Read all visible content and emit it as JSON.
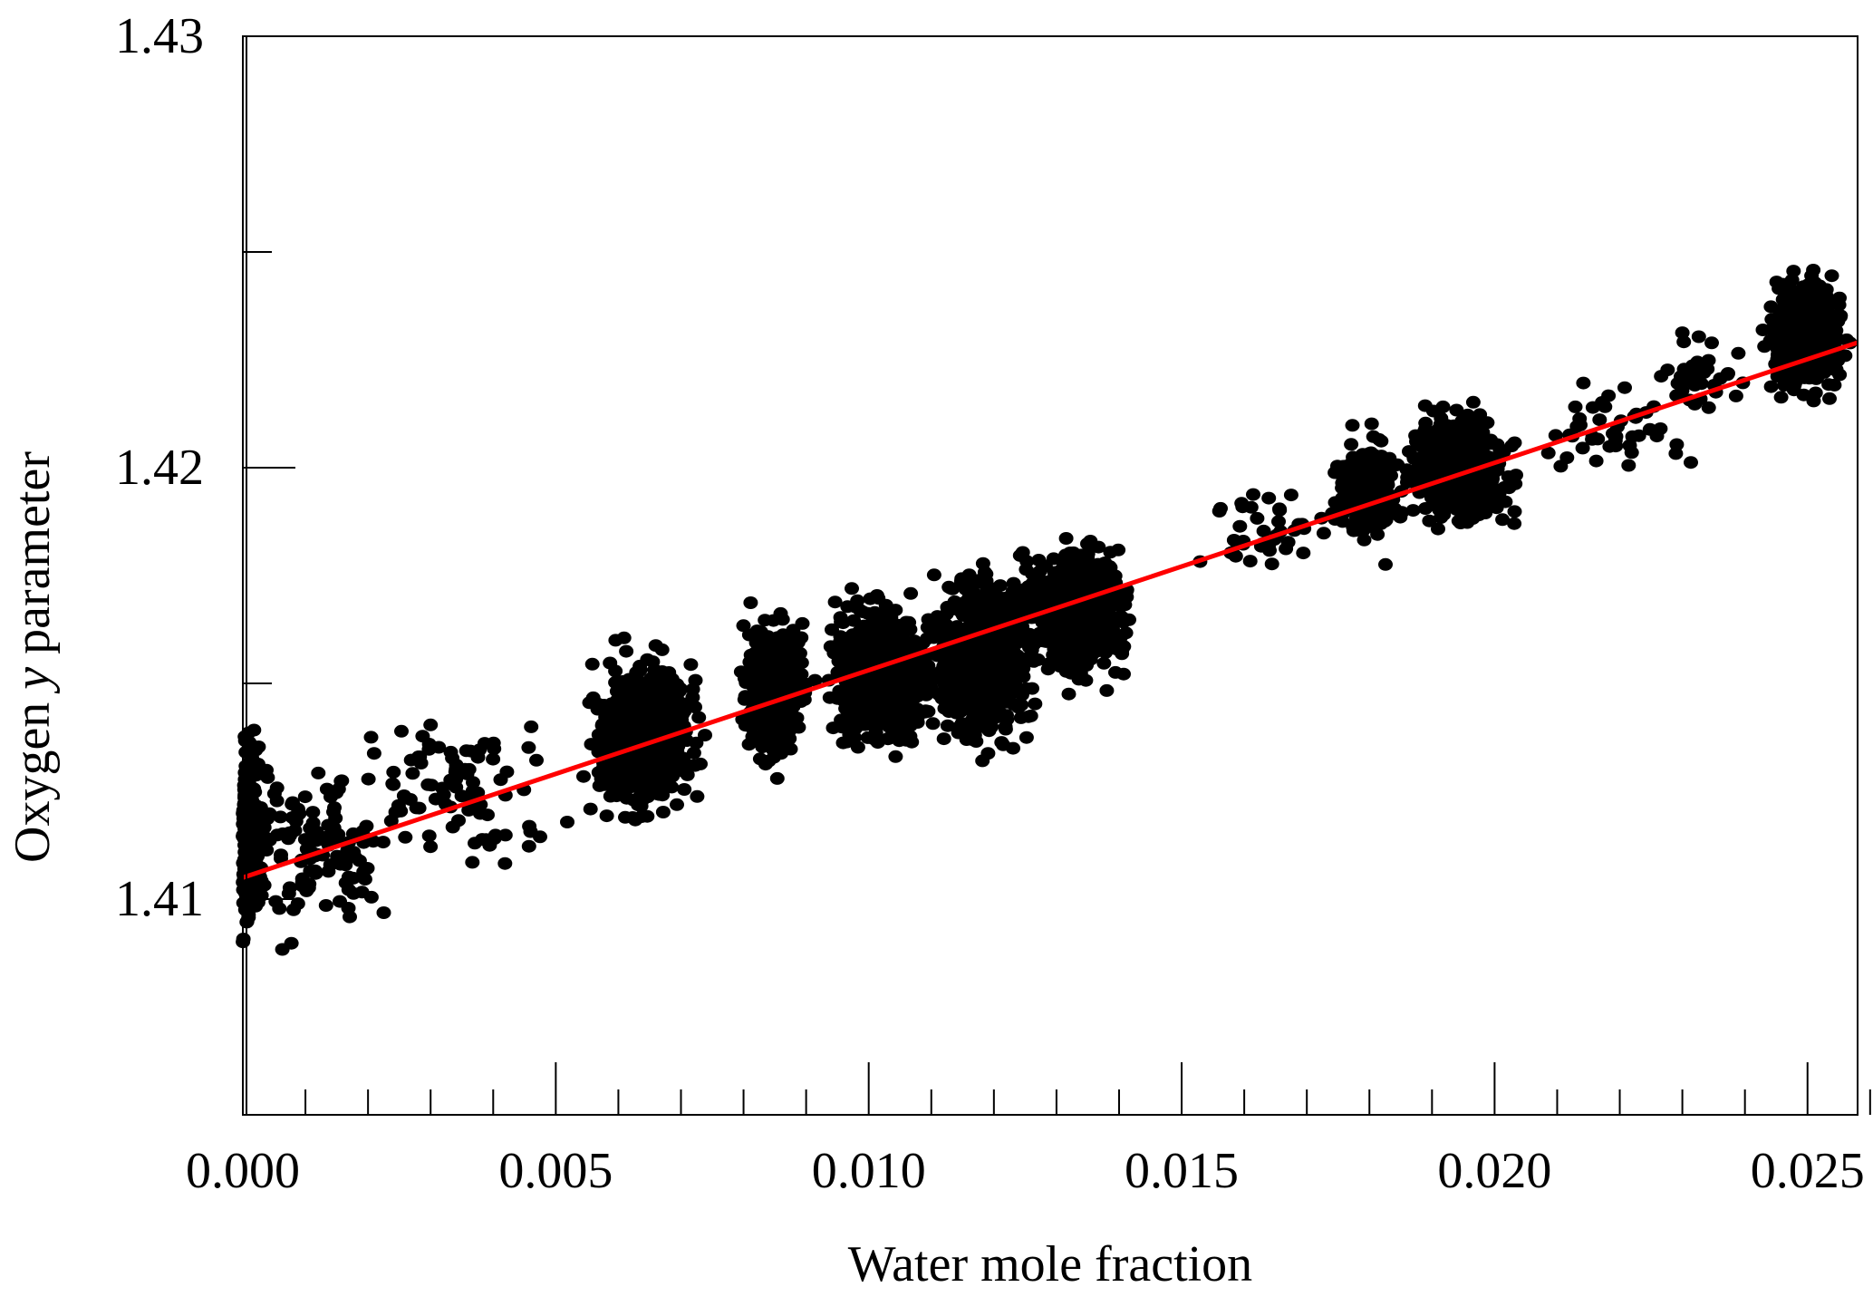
{
  "chart_data": {
    "type": "scatter",
    "xlabel": "Water mole fraction",
    "ylabel_parts": [
      "Oxygen ",
      "y",
      " parameter"
    ],
    "xlim": [
      0.0,
      0.0258
    ],
    "ylim": [
      1.405,
      1.43
    ],
    "x_ticks": [
      {
        "value": 0.0,
        "label": "0.000"
      },
      {
        "value": 0.005,
        "label": "0.005"
      },
      {
        "value": 0.01,
        "label": "0.010"
      },
      {
        "value": 0.015,
        "label": "0.015"
      },
      {
        "value": 0.02,
        "label": "0.020"
      },
      {
        "value": 0.025,
        "label": "0.025"
      }
    ],
    "x_minor_step": 0.001,
    "y_ticks": [
      {
        "value": 1.41,
        "label": "1.41"
      },
      {
        "value": 1.42,
        "label": "1.42"
      },
      {
        "value": 1.43,
        "label": "1.43"
      }
    ],
    "y_minor_step": 0.005,
    "grid": false,
    "point_color": "#000000",
    "fit_color": "#ff0000",
    "fit_line": {
      "x": [
        0.0,
        0.0258
      ],
      "y": [
        1.4105,
        1.4229
      ]
    },
    "clusters": [
      {
        "x_center": 0.0001,
        "x_spread": 0.00015,
        "y_center": 1.4115,
        "y_spread": 0.0022,
        "count": 250
      },
      {
        "x_center": 0.0012,
        "x_spread": 0.0009,
        "y_center": 1.4112,
        "y_spread": 0.0016,
        "count": 120
      },
      {
        "x_center": 0.0035,
        "x_spread": 0.0014,
        "y_center": 1.4125,
        "y_spread": 0.0015,
        "count": 90
      },
      {
        "x_center": 0.0064,
        "x_spread": 0.0006,
        "y_center": 1.4138,
        "y_spread": 0.0015,
        "count": 650
      },
      {
        "x_center": 0.0085,
        "x_spread": 0.00035,
        "y_center": 1.4148,
        "y_spread": 0.0014,
        "count": 380
      },
      {
        "x_center": 0.0102,
        "x_spread": 0.0006,
        "y_center": 1.4152,
        "y_spread": 0.0014,
        "count": 650
      },
      {
        "x_center": 0.0118,
        "x_spread": 0.0006,
        "y_center": 1.4155,
        "y_spread": 0.0016,
        "count": 750
      },
      {
        "x_center": 0.0133,
        "x_spread": 0.0006,
        "y_center": 1.4167,
        "y_spread": 0.0013,
        "count": 650
      },
      {
        "x_center": 0.0162,
        "x_spread": 0.0008,
        "y_center": 1.4185,
        "y_spread": 0.0008,
        "count": 40
      },
      {
        "x_center": 0.0179,
        "x_spread": 0.0004,
        "y_center": 1.4195,
        "y_spread": 0.0011,
        "count": 230
      },
      {
        "x_center": 0.0194,
        "x_spread": 0.0006,
        "y_center": 1.42,
        "y_spread": 0.0011,
        "count": 500
      },
      {
        "x_center": 0.0218,
        "x_spread": 0.0008,
        "y_center": 1.4208,
        "y_spread": 0.0009,
        "count": 45
      },
      {
        "x_center": 0.0233,
        "x_spread": 0.0006,
        "y_center": 1.4222,
        "y_spread": 0.0008,
        "count": 35
      },
      {
        "x_center": 0.025,
        "x_spread": 0.0004,
        "y_center": 1.423,
        "y_spread": 0.0012,
        "count": 450
      }
    ]
  }
}
